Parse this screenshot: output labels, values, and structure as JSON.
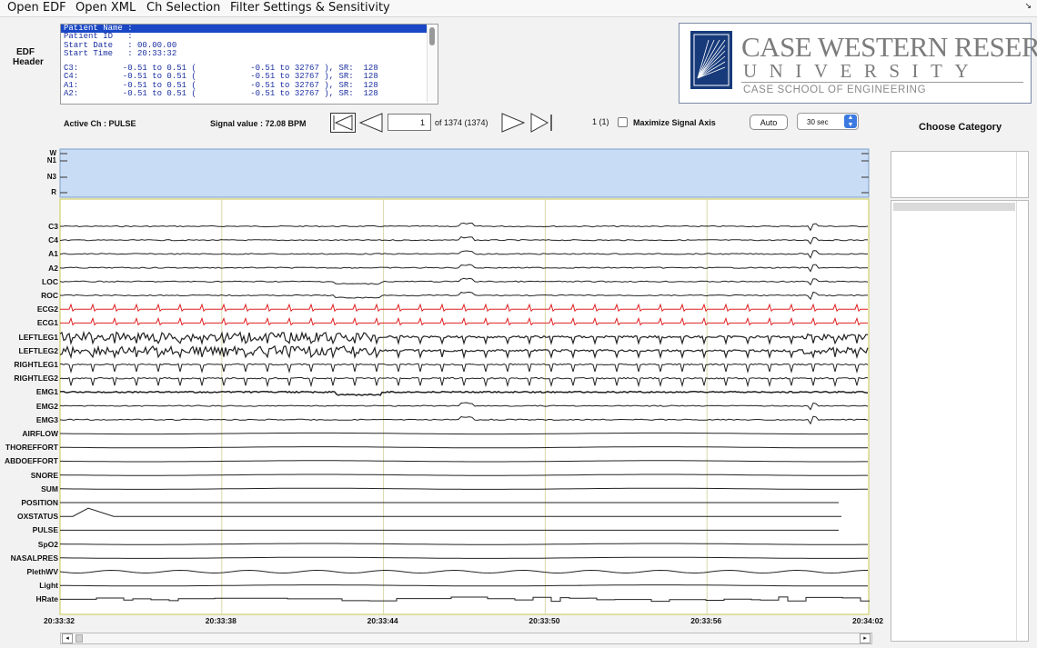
{
  "menu": {
    "items": [
      "Open EDF",
      "Open XML",
      "Ch Selection",
      "Filter Settings & Sensitivity"
    ],
    "corner": "↘"
  },
  "edf_header": {
    "label": "EDF\nHeader",
    "lines": [
      "Patient Name :",
      "Patient ID   :",
      "Start Date   : 00.00.00",
      "Start Time   : 20:33:32",
      "",
      "C3:         -0.51 to 0.51 (           -0.51 to 32767 ), SR:  128",
      "C4:         -0.51 to 0.51 (           -0.51 to 32767 ), SR:  128",
      "A1:         -0.51 to 0.51 (           -0.51 to 32767 ), SR:  128",
      "A2:         -0.51 to 0.51 (           -0.51 to 32767 ), SR:  128"
    ]
  },
  "logo": {
    "line1": "CASE WESTERN RESERVE",
    "line2": "UNIVERSITY",
    "line3": "CASE SCHOOL OF ENGINEERING"
  },
  "controls": {
    "active_channel": "Active Ch : PULSE",
    "signal_value": "Signal value : 72.08 BPM",
    "page_value": "1",
    "page_of": "of 1374 (1374)",
    "page_sub": "1 (1)",
    "maximize_label": "Maximize Signal Axis",
    "maximize_checked": false,
    "auto_label": "Auto",
    "window_select": "30 sec",
    "window_options": [
      "30 sec"
    ]
  },
  "category": {
    "title": "Choose Category"
  },
  "hypnogram": {
    "stage_labels": [
      "W",
      "N1",
      "N3",
      "R"
    ],
    "fill_color": "#c8dcf5"
  },
  "channels": [
    {
      "name": "C3",
      "style": "eeg"
    },
    {
      "name": "C4",
      "style": "eeg"
    },
    {
      "name": "A1",
      "style": "eeg"
    },
    {
      "name": "A2",
      "style": "eeg"
    },
    {
      "name": "LOC",
      "style": "eog"
    },
    {
      "name": "ROC",
      "style": "eog"
    },
    {
      "name": "ECG2",
      "style": "ecg"
    },
    {
      "name": "ECG1",
      "style": "ecg"
    },
    {
      "name": "LEFTLEG1",
      "style": "leg"
    },
    {
      "name": "LEFTLEG2",
      "style": "leg"
    },
    {
      "name": "RIGHTLEG1",
      "style": "spike"
    },
    {
      "name": "RIGHTLEG2",
      "style": "spike"
    },
    {
      "name": "EMG1",
      "style": "emg"
    },
    {
      "name": "EMG2",
      "style": "eeg"
    },
    {
      "name": "EMG3",
      "style": "eeg"
    },
    {
      "name": "AIRFLOW",
      "style": "flat"
    },
    {
      "name": "THOREFFORT",
      "style": "flat"
    },
    {
      "name": "ABDOEFFORT",
      "style": "flat"
    },
    {
      "name": "SNORE",
      "style": "flat"
    },
    {
      "name": "SUM",
      "style": "flat"
    },
    {
      "name": "POSITION",
      "style": "short"
    },
    {
      "name": "OXSTATUS",
      "style": "oxstatus"
    },
    {
      "name": "PULSE",
      "style": "short"
    },
    {
      "name": "SpO2",
      "style": "flat"
    },
    {
      "name": "NASALPRES",
      "style": "flat"
    },
    {
      "name": "PlethWV",
      "style": "pleth"
    },
    {
      "name": "Light",
      "style": "flat"
    },
    {
      "name": "HRate",
      "style": "hrate"
    }
  ],
  "colors": {
    "ecg": "#e02020",
    "signal": "#222222",
    "grid": "#d8d8a8",
    "plot_border": "#c8c850"
  },
  "time_axis": [
    "20:33:32",
    "20:33:38",
    "20:33:44",
    "20:33:50",
    "20:33:56",
    "20:34:02"
  ],
  "scrollbar": {
    "left": "◂",
    "right": "▸"
  }
}
